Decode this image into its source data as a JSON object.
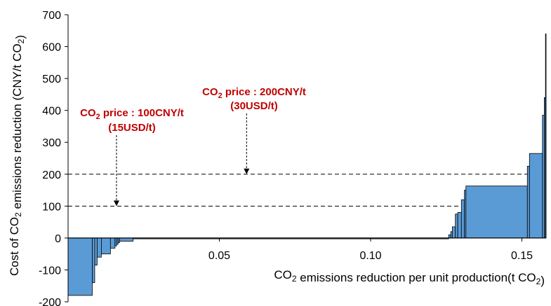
{
  "chart_data": {
    "type": "bar",
    "subtype": "marginal-abatement-cost-curve",
    "title": "",
    "xlabel": "CO₂ emissions reduction per unit production(t CO₂)",
    "ylabel": "Cost of CO₂ emissions reduction (CNY/t CO₂)",
    "xlim": [
      0,
      0.158
    ],
    "ylim": [
      -200,
      700
    ],
    "x_ticks": [
      "0.05",
      "0.10",
      "0.15"
    ],
    "y_ticks": [
      "700",
      "600",
      "500",
      "400",
      "300",
      "200",
      "100",
      "0",
      "-100",
      "-200"
    ],
    "x_tick_values": [
      0.05,
      0.1,
      0.15
    ],
    "y_tick_values": [
      700,
      600,
      500,
      400,
      300,
      200,
      100,
      0,
      -100,
      -200
    ],
    "grid": false,
    "bar_color": "#5b9bd5",
    "bar_edge_color": "#000000",
    "reference_lines": [
      {
        "y": 100,
        "style": "dashed"
      },
      {
        "y": 200,
        "style": "dashed"
      }
    ],
    "bars": [
      {
        "x_start": 0.0,
        "x_end": 0.008,
        "cost": -180
      },
      {
        "x_start": 0.008,
        "x_end": 0.0088,
        "cost": -140
      },
      {
        "x_start": 0.0088,
        "x_end": 0.0096,
        "cost": -85
      },
      {
        "x_start": 0.0096,
        "x_end": 0.011,
        "cost": -60
      },
      {
        "x_start": 0.011,
        "x_end": 0.014,
        "cost": -50
      },
      {
        "x_start": 0.014,
        "x_end": 0.0155,
        "cost": -32
      },
      {
        "x_start": 0.0155,
        "x_end": 0.016,
        "cost": -25
      },
      {
        "x_start": 0.016,
        "x_end": 0.0165,
        "cost": -20
      },
      {
        "x_start": 0.0165,
        "x_end": 0.017,
        "cost": -15
      },
      {
        "x_start": 0.017,
        "x_end": 0.0215,
        "cost": -10
      },
      {
        "x_start": 0.0215,
        "x_end": 0.1258,
        "cost": 0
      },
      {
        "x_start": 0.1258,
        "x_end": 0.1265,
        "cost": 10
      },
      {
        "x_start": 0.1265,
        "x_end": 0.127,
        "cost": 20
      },
      {
        "x_start": 0.127,
        "x_end": 0.128,
        "cost": 35
      },
      {
        "x_start": 0.128,
        "x_end": 0.1288,
        "cost": 75
      },
      {
        "x_start": 0.1288,
        "x_end": 0.13,
        "cost": 80
      },
      {
        "x_start": 0.13,
        "x_end": 0.131,
        "cost": 120
      },
      {
        "x_start": 0.131,
        "x_end": 0.1315,
        "cost": 150
      },
      {
        "x_start": 0.1315,
        "x_end": 0.1518,
        "cost": 163
      },
      {
        "x_start": 0.1518,
        "x_end": 0.1525,
        "cost": 225
      },
      {
        "x_start": 0.1525,
        "x_end": 0.1568,
        "cost": 265
      },
      {
        "x_start": 0.1568,
        "x_end": 0.1574,
        "cost": 385
      },
      {
        "x_start": 0.1574,
        "x_end": 0.1578,
        "cost": 440
      },
      {
        "x_start": 0.1578,
        "x_end": 0.158,
        "cost": 640
      }
    ],
    "annotations": [
      {
        "id": "price100",
        "line1_pre": "CO",
        "line1_sub": "2",
        "line1_post": " price : 100CNY/t",
        "line2": "(15USD/t)",
        "color": "#c00000",
        "target_x": 0.016,
        "target_y": 100
      },
      {
        "id": "price200",
        "line1_pre": "CO",
        "line1_sub": "2",
        "line1_post": " price : 200CNY/t",
        "line2": "(30USD/t)",
        "color": "#c00000",
        "target_x": 0.059,
        "target_y": 200
      }
    ]
  }
}
